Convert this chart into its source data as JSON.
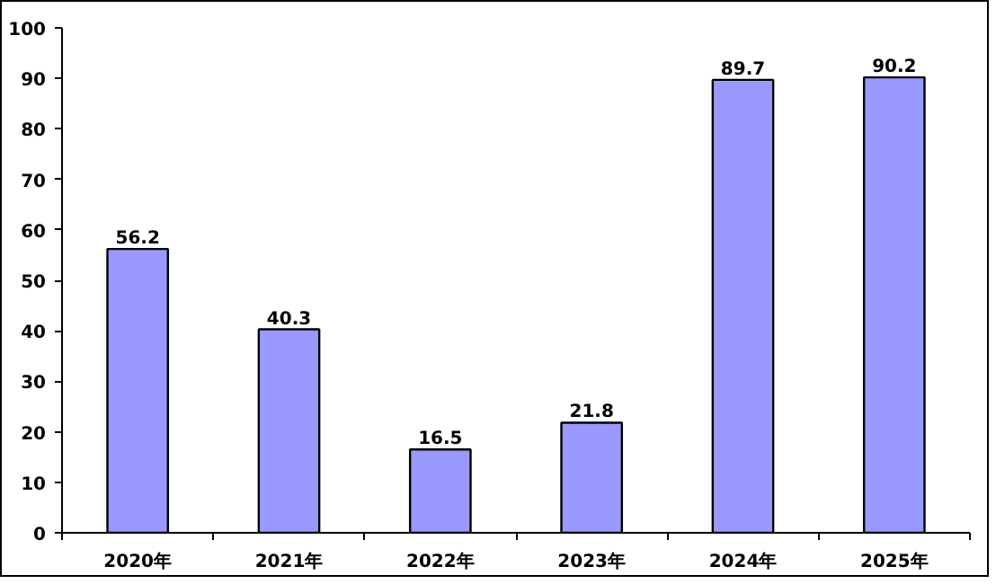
{
  "chart_data": {
    "type": "bar",
    "categories": [
      "2020年",
      "2021年",
      "2022年",
      "2023年",
      "2024年",
      "2025年"
    ],
    "values": [
      56.2,
      40.3,
      16.5,
      21.8,
      89.7,
      90.2
    ],
    "color": "#9999ff",
    "ylim": [
      0,
      100
    ],
    "yticks": [
      0,
      10,
      20,
      30,
      40,
      50,
      60,
      70,
      80,
      90,
      100
    ],
    "grid": false,
    "data_labels": true
  }
}
